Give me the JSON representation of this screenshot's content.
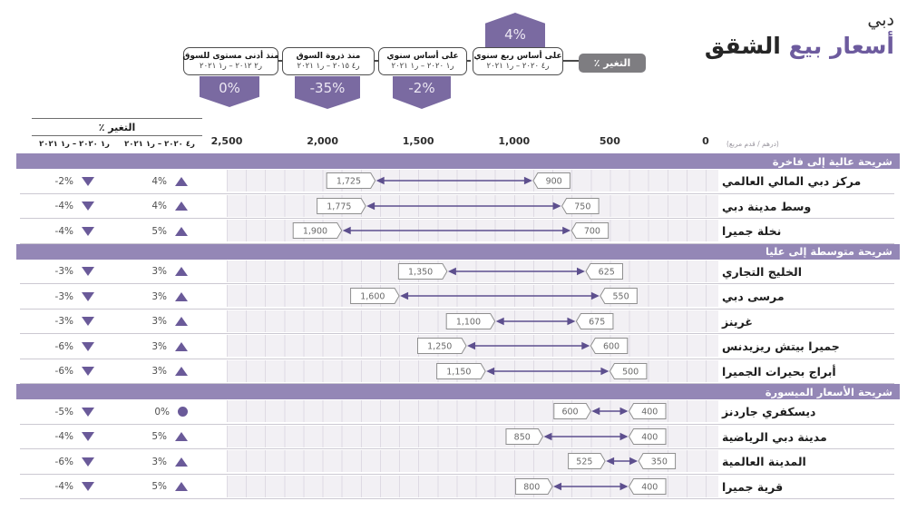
{
  "title": {
    "city": "دبي",
    "accent": "أسعار بيع",
    "rest": "الشقق"
  },
  "change_chip_label": "٪ التغير",
  "callouts": [
    {
      "label": "على أساس ربع سنوي",
      "period": "ر٤ ٢٠٢٠ – ر١ ٢٠٢١",
      "value": "4%",
      "badge_position": "above"
    },
    {
      "label": "على أساس سنوي",
      "period": "ر١ ٢٠٢٠ – ر١ ٢٠٢١",
      "value": "-2%",
      "badge_position": "below"
    },
    {
      "label": "منذ ذروة السوق",
      "period": "ر٤ ٢٠١٥ – ر١ ٢٠٢١",
      "value": "-35%",
      "badge_position": "below"
    },
    {
      "label": "منذ أدنى مستوى للسوق",
      "period": "ر٢ ٢٠١٢ – ر١ ٢٠٢١",
      "value": "0%",
      "badge_position": "below"
    }
  ],
  "table_header": {
    "change_title": "٪ التغير",
    "col_annual": "ر١ ٢٠٢٠ – ر١ ٢٠٢١",
    "col_quarterly": "ر٤ ٢٠٢٠ – ر١ ٢٠٢١"
  },
  "chart_data": {
    "type": "range_dumbbell",
    "title": "أسعار بيع الشقق - دبي",
    "unit_label": "(درهم / قدم مربع)",
    "axis": {
      "min": 0,
      "max": 2500,
      "direction": "rtl",
      "grid_step": 100,
      "ticks": [
        {
          "label": "2,500",
          "value": 2500
        },
        {
          "label": "2,000",
          "value": 2000
        },
        {
          "label": "1,500",
          "value": 1500
        },
        {
          "label": "1,000",
          "value": 1000
        },
        {
          "label": "500",
          "value": 500
        },
        {
          "label": "0",
          "value": 0
        }
      ]
    },
    "sections": [
      {
        "title": "شريحة عالية إلى فاخرة",
        "rows": [
          {
            "name": "مركز دبي المالي العالمي",
            "min": 900,
            "max": 1725,
            "annual": {
              "value": "-2%",
              "direction": "down"
            },
            "quarterly": {
              "value": "4%",
              "direction": "up"
            }
          },
          {
            "name": "وسط مدينة دبي",
            "min": 750,
            "max": 1775,
            "annual": {
              "value": "-4%",
              "direction": "down"
            },
            "quarterly": {
              "value": "4%",
              "direction": "up"
            }
          },
          {
            "name": "نخلة جميرا",
            "min": 700,
            "max": 1900,
            "annual": {
              "value": "-4%",
              "direction": "down"
            },
            "quarterly": {
              "value": "5%",
              "direction": "up"
            }
          }
        ]
      },
      {
        "title": "شريحة متوسطة إلى عليا",
        "rows": [
          {
            "name": "الخليج التجاري",
            "min": 625,
            "max": 1350,
            "annual": {
              "value": "-3%",
              "direction": "down"
            },
            "quarterly": {
              "value": "3%",
              "direction": "up"
            }
          },
          {
            "name": "مرسى دبي",
            "min": 550,
            "max": 1600,
            "annual": {
              "value": "-3%",
              "direction": "down"
            },
            "quarterly": {
              "value": "3%",
              "direction": "up"
            }
          },
          {
            "name": "غرينز",
            "min": 675,
            "max": 1100,
            "annual": {
              "value": "-3%",
              "direction": "down"
            },
            "quarterly": {
              "value": "3%",
              "direction": "up"
            }
          },
          {
            "name": "جميرا بيتش ريزيدنس",
            "min": 600,
            "max": 1250,
            "annual": {
              "value": "-6%",
              "direction": "down"
            },
            "quarterly": {
              "value": "3%",
              "direction": "up"
            }
          },
          {
            "name": "أبراج بحيرات الجميرا",
            "min": 500,
            "max": 1150,
            "annual": {
              "value": "-6%",
              "direction": "down"
            },
            "quarterly": {
              "value": "3%",
              "direction": "up"
            }
          }
        ]
      },
      {
        "title": "شريحة الأسعار الميسورة",
        "rows": [
          {
            "name": "ديسكفري جاردنز",
            "min": 400,
            "max": 600,
            "annual": {
              "value": "-5%",
              "direction": "down"
            },
            "quarterly": {
              "value": "0%",
              "direction": "flat"
            }
          },
          {
            "name": "مدينة دبي الرياضية",
            "min": 400,
            "max": 850,
            "annual": {
              "value": "-4%",
              "direction": "down"
            },
            "quarterly": {
              "value": "5%",
              "direction": "up"
            }
          },
          {
            "name": "المدينة العالمية",
            "min": 350,
            "max": 525,
            "annual": {
              "value": "-6%",
              "direction": "down"
            },
            "quarterly": {
              "value": "3%",
              "direction": "up"
            }
          },
          {
            "name": "قرية جميرا",
            "min": 400,
            "max": 800,
            "annual": {
              "value": "-4%",
              "direction": "down"
            },
            "quarterly": {
              "value": "5%",
              "direction": "up"
            }
          }
        ]
      }
    ]
  },
  "colors": {
    "band_purple": "#9487b6",
    "badge_purple": "#7a6aa1",
    "arrow_purple": "#5d4f8e",
    "indicator_purple": "#6a5a99",
    "title_accent": "#6d5b9e",
    "chip_gray": "#7e7d81"
  }
}
